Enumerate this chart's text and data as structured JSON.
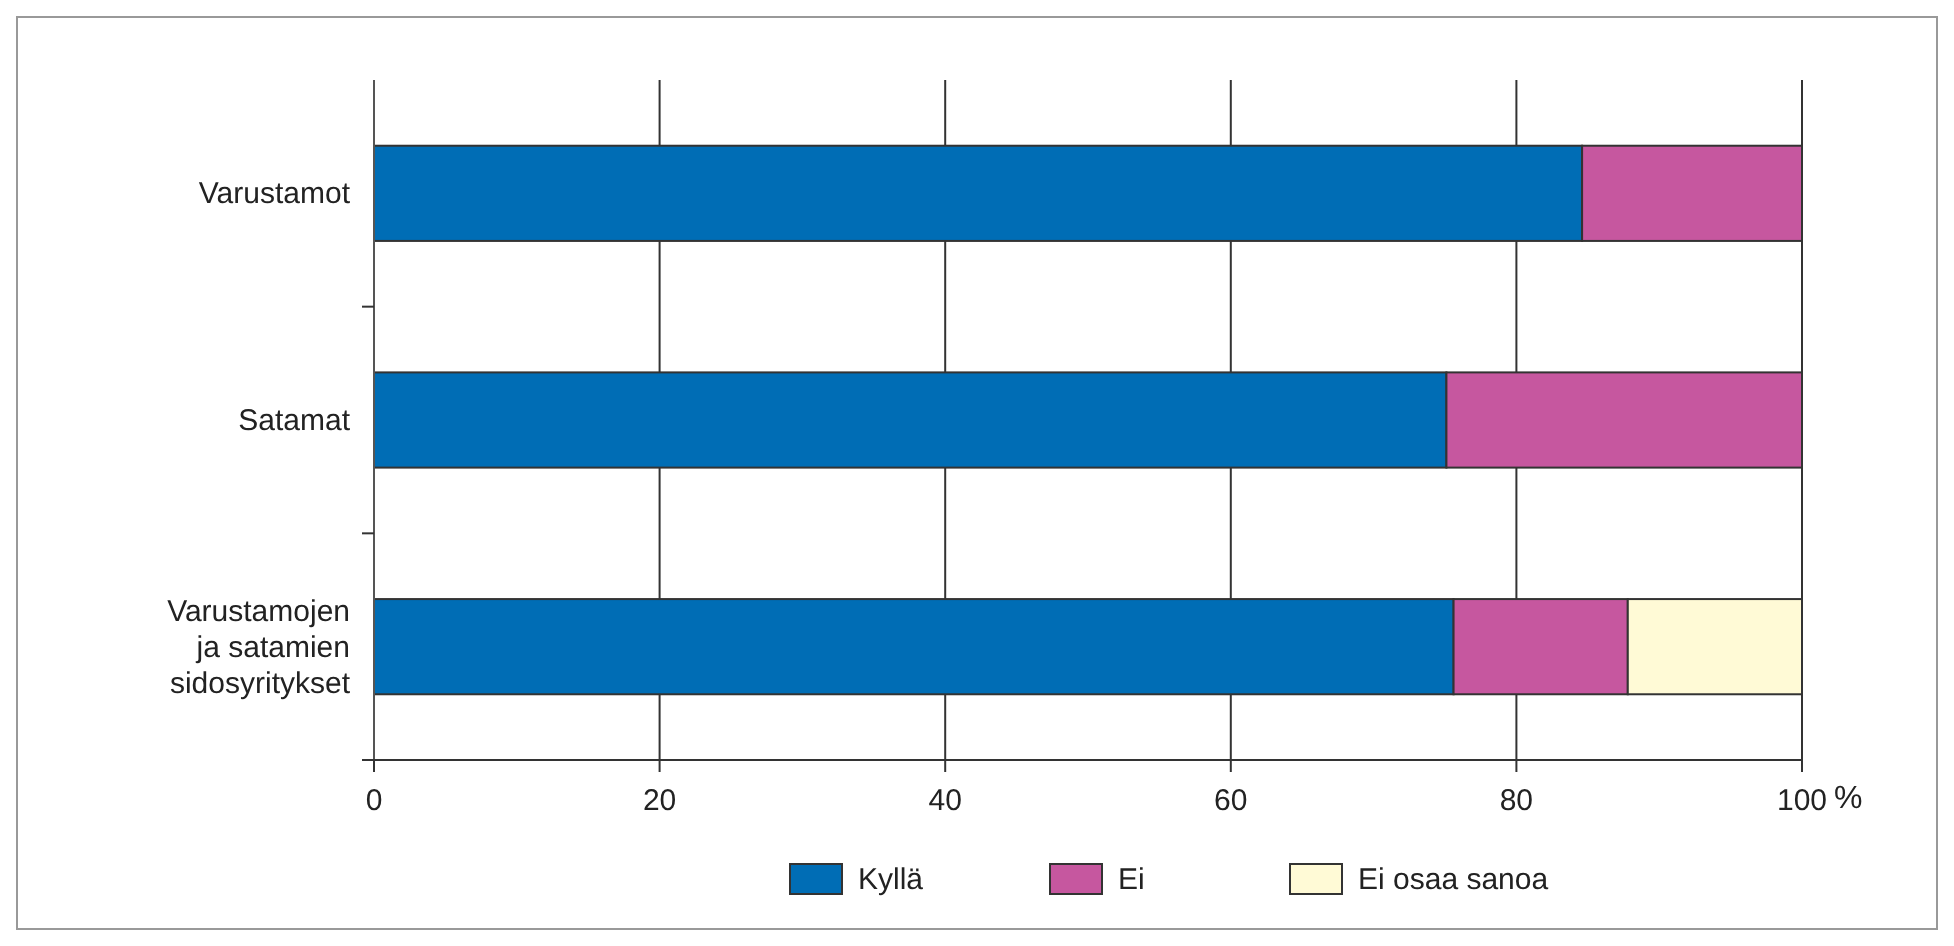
{
  "chart_data": {
    "type": "bar",
    "orientation": "horizontal",
    "stacked": true,
    "categories": [
      "Varustamot",
      "Satamat",
      "Varustamojen ja satamien sidosyritykset"
    ],
    "series": [
      {
        "name": "Kyllä",
        "color": "#006db5",
        "values": [
          84.6,
          75.1,
          75.6
        ]
      },
      {
        "name": "Ei",
        "color": "#c6579f",
        "values": [
          15.4,
          24.9,
          12.2
        ]
      },
      {
        "name": "Ei osaa sanoa",
        "color": "#fffad6",
        "values": [
          0,
          0,
          12.2
        ]
      }
    ],
    "xlim": [
      0,
      100
    ],
    "xticks": [
      0,
      20,
      40,
      60,
      80,
      100
    ],
    "xlabel": "%",
    "grid": "x",
    "legend": "bottom"
  }
}
